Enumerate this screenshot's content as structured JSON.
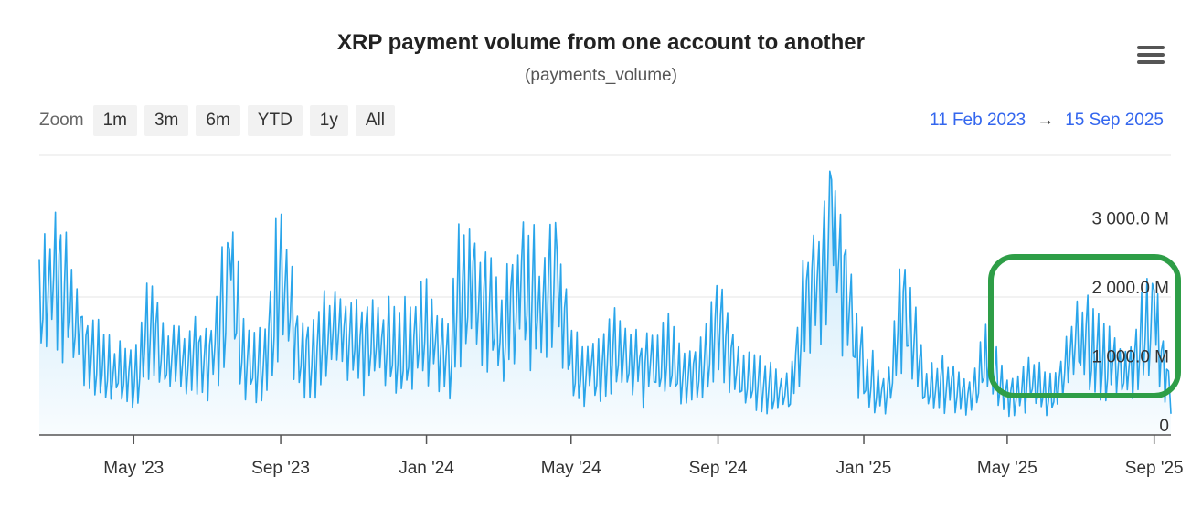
{
  "header": {
    "title": "XRP payment volume from one account to another",
    "subtitle": "(payments_volume)",
    "menu_icon": "hamburger-menu-icon"
  },
  "zoom": {
    "label": "Zoom",
    "buttons": [
      "1m",
      "3m",
      "6m",
      "YTD",
      "1y",
      "All"
    ]
  },
  "range": {
    "from": "11 Feb 2023",
    "arrow": "→",
    "to": "15 Sep 2025"
  },
  "colors": {
    "series_line": "#2aa5ea",
    "highlight_box": "#2e9e47",
    "range_date": "#3366ee"
  },
  "chart_data": {
    "type": "area",
    "title": "XRP payment volume from one account to another",
    "subtitle": "(payments_volume)",
    "x_range": [
      "2023-02-11",
      "2025-09-15"
    ],
    "x_tick_labels": [
      "May '23",
      "Sep '23",
      "Jan '24",
      "May '24",
      "Sep '24",
      "Jan '25",
      "May '25",
      "Sep '25"
    ],
    "x_tick_dates": [
      "2023-05-01",
      "2023-09-01",
      "2024-01-01",
      "2024-05-01",
      "2024-09-01",
      "2025-01-01",
      "2025-05-01",
      "2025-09-01"
    ],
    "y_tick_labels": [
      "0",
      "1 000.0 M",
      "2 000.0 M",
      "3 000.0 M"
    ],
    "y_tick_values": [
      0,
      1000,
      2000,
      3000
    ],
    "y_unit": "M",
    "ylim": [
      0,
      3700
    ],
    "grid": true,
    "annotation": "green rounded rectangle highlighting Jun–Sep 2025 values",
    "series": [
      {
        "values": [
          {
            "x": "2023-02-11",
            "y": 2550
          },
          {
            "x": "2023-02-20",
            "y": 2700
          },
          {
            "x": "2023-03-01",
            "y": 2900
          },
          {
            "x": "2023-03-10",
            "y": 2400
          },
          {
            "x": "2023-03-20",
            "y": 1500
          },
          {
            "x": "2023-04-01",
            "y": 1300
          },
          {
            "x": "2023-04-15",
            "y": 1100
          },
          {
            "x": "2023-05-01",
            "y": 1000
          },
          {
            "x": "2023-05-15",
            "y": 1900
          },
          {
            "x": "2023-06-01",
            "y": 1200
          },
          {
            "x": "2023-06-20",
            "y": 1400
          },
          {
            "x": "2023-07-05",
            "y": 1300
          },
          {
            "x": "2023-07-20",
            "y": 2700
          },
          {
            "x": "2023-08-05",
            "y": 1200
          },
          {
            "x": "2023-08-20",
            "y": 1400
          },
          {
            "x": "2023-09-01",
            "y": 3200
          },
          {
            "x": "2023-09-15",
            "y": 1400
          },
          {
            "x": "2023-10-01",
            "y": 1500
          },
          {
            "x": "2023-10-15",
            "y": 1800
          },
          {
            "x": "2023-11-01",
            "y": 1500
          },
          {
            "x": "2023-11-20",
            "y": 1600
          },
          {
            "x": "2023-12-10",
            "y": 1500
          },
          {
            "x": "2024-01-01",
            "y": 1800
          },
          {
            "x": "2024-01-20",
            "y": 1400
          },
          {
            "x": "2024-02-01",
            "y": 2900
          },
          {
            "x": "2024-02-15",
            "y": 2500
          },
          {
            "x": "2024-03-01",
            "y": 1700
          },
          {
            "x": "2024-03-20",
            "y": 2500
          },
          {
            "x": "2024-04-05",
            "y": 2300
          },
          {
            "x": "2024-04-20",
            "y": 2600
          },
          {
            "x": "2024-05-01",
            "y": 1200
          },
          {
            "x": "2024-05-20",
            "y": 1100
          },
          {
            "x": "2024-06-10",
            "y": 1600
          },
          {
            "x": "2024-07-01",
            "y": 1100
          },
          {
            "x": "2024-07-20",
            "y": 1400
          },
          {
            "x": "2024-08-10",
            "y": 1000
          },
          {
            "x": "2024-09-01",
            "y": 1900
          },
          {
            "x": "2024-09-20",
            "y": 1000
          },
          {
            "x": "2024-10-10",
            "y": 900
          },
          {
            "x": "2024-11-01",
            "y": 700
          },
          {
            "x": "2024-11-15",
            "y": 2500
          },
          {
            "x": "2024-11-25",
            "y": 2800
          },
          {
            "x": "2024-12-05",
            "y": 3700
          },
          {
            "x": "2024-12-15",
            "y": 2600
          },
          {
            "x": "2025-01-01",
            "y": 1100
          },
          {
            "x": "2025-01-20",
            "y": 700
          },
          {
            "x": "2025-02-05",
            "y": 2400
          },
          {
            "x": "2025-02-20",
            "y": 800
          },
          {
            "x": "2025-03-10",
            "y": 900
          },
          {
            "x": "2025-04-01",
            "y": 600
          },
          {
            "x": "2025-04-15",
            "y": 1500
          },
          {
            "x": "2025-05-01",
            "y": 700
          },
          {
            "x": "2025-05-20",
            "y": 900
          },
          {
            "x": "2025-06-10",
            "y": 700
          },
          {
            "x": "2025-07-01",
            "y": 1700
          },
          {
            "x": "2025-07-20",
            "y": 1300
          },
          {
            "x": "2025-08-10",
            "y": 1100
          },
          {
            "x": "2025-09-01",
            "y": 2100
          },
          {
            "x": "2025-09-15",
            "y": 600
          }
        ]
      }
    ]
  }
}
